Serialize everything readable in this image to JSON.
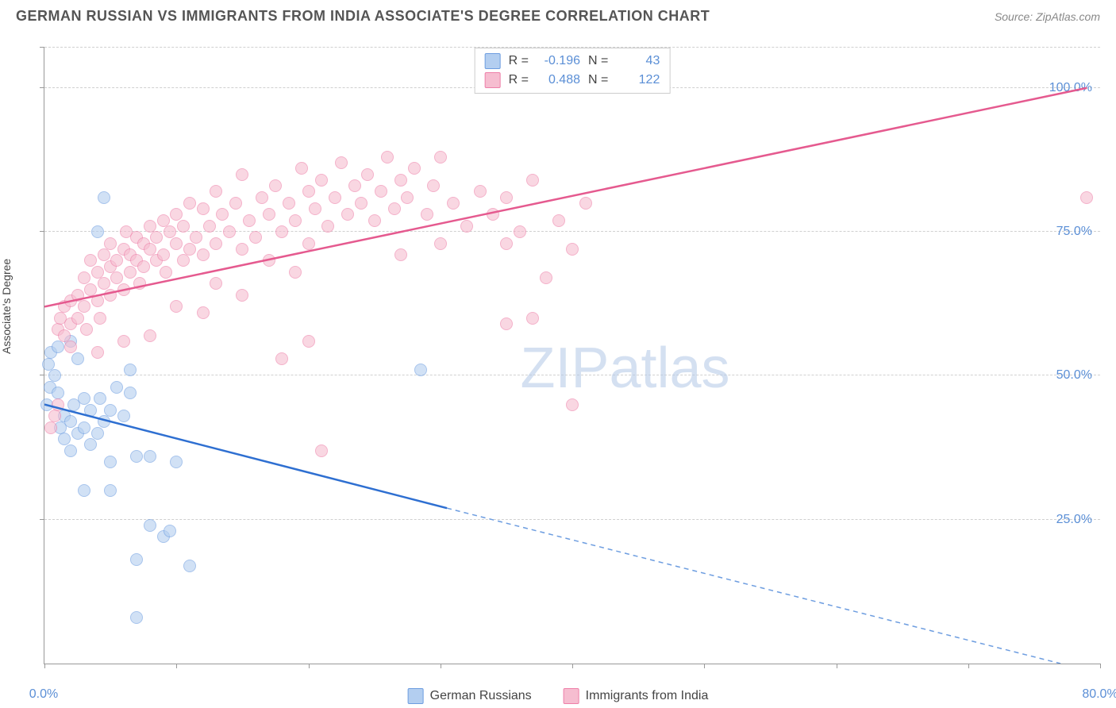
{
  "title": "GERMAN RUSSIAN VS IMMIGRANTS FROM INDIA ASSOCIATE'S DEGREE CORRELATION CHART",
  "source": "Source: ZipAtlas.com",
  "watermark": "ZIPatlas",
  "ylabel": "Associate's Degree",
  "chart": {
    "type": "scatter",
    "xlim": [
      0,
      80
    ],
    "ylim": [
      0,
      107
    ],
    "x_ticks": [
      0,
      10,
      20,
      30,
      40,
      50,
      60,
      70,
      80
    ],
    "x_tick_labels": {
      "0": "0.0%",
      "80": "80.0%"
    },
    "y_gridlines": [
      25,
      50,
      75,
      100,
      107
    ],
    "y_tick_labels": {
      "25": "25.0%",
      "50": "50.0%",
      "75": "75.0%",
      "100": "100.0%"
    },
    "background_color": "#ffffff",
    "grid_color": "#d0d0d0",
    "axis_color": "#999999",
    "tick_label_color": "#5b8fd6",
    "point_radius": 8,
    "series": [
      {
        "name": "German Russians",
        "color_fill": "#b3cef0",
        "color_stroke": "#6d9de0",
        "fill_opacity": 0.6,
        "R": "-0.196",
        "N": "43",
        "trend": {
          "x1": 0,
          "y1": 45,
          "x2": 30.5,
          "y2": 27,
          "color": "#2e6fd1",
          "width": 2.5
        },
        "trend_ext": {
          "x1": 30.5,
          "y1": 27,
          "x2": 77,
          "y2": 0,
          "color": "#6d9de0",
          "width": 1.5,
          "dash": "6,5"
        },
        "points": [
          [
            0.2,
            45
          ],
          [
            0.3,
            52
          ],
          [
            0.4,
            48
          ],
          [
            0.5,
            54
          ],
          [
            0.8,
            50
          ],
          [
            1,
            55
          ],
          [
            1,
            47
          ],
          [
            1.2,
            41
          ],
          [
            1.5,
            43
          ],
          [
            1.5,
            39
          ],
          [
            2,
            42
          ],
          [
            2,
            37
          ],
          [
            2.2,
            45
          ],
          [
            2.5,
            40
          ],
          [
            2.5,
            53
          ],
          [
            3,
            46
          ],
          [
            3,
            41
          ],
          [
            3.5,
            44
          ],
          [
            3.5,
            38
          ],
          [
            4,
            40
          ],
          [
            4.2,
            46
          ],
          [
            4.5,
            42
          ],
          [
            5,
            44
          ],
          [
            5,
            35
          ],
          [
            5.5,
            48
          ],
          [
            6,
            43
          ],
          [
            6.5,
            47
          ],
          [
            4,
            75
          ],
          [
            4.5,
            81
          ],
          [
            5,
            30
          ],
          [
            3,
            30
          ],
          [
            7,
            36
          ],
          [
            8,
            36
          ],
          [
            9,
            22
          ],
          [
            9.5,
            23
          ],
          [
            10,
            35
          ],
          [
            7,
            18
          ],
          [
            11,
            17
          ],
          [
            8,
            24
          ],
          [
            7,
            8
          ],
          [
            6.5,
            51
          ],
          [
            2,
            56
          ],
          [
            28.5,
            51
          ]
        ]
      },
      {
        "name": "Immigrants from India",
        "color_fill": "#f6bdd0",
        "color_stroke": "#ee7fa8",
        "fill_opacity": 0.6,
        "R": "0.488",
        "N": "122",
        "trend": {
          "x1": 0,
          "y1": 62,
          "x2": 79,
          "y2": 100,
          "color": "#e55a8f",
          "width": 2.5
        },
        "points": [
          [
            0.5,
            41
          ],
          [
            0.8,
            43
          ],
          [
            1,
            58
          ],
          [
            1,
            45
          ],
          [
            1.2,
            60
          ],
          [
            1.5,
            57
          ],
          [
            1.5,
            62
          ],
          [
            2,
            59
          ],
          [
            2,
            63
          ],
          [
            2,
            55
          ],
          [
            2.5,
            64
          ],
          [
            2.5,
            60
          ],
          [
            3,
            62
          ],
          [
            3,
            67
          ],
          [
            3.2,
            58
          ],
          [
            3.5,
            65
          ],
          [
            3.5,
            70
          ],
          [
            4,
            63
          ],
          [
            4,
            68
          ],
          [
            4.2,
            60
          ],
          [
            4.5,
            71
          ],
          [
            4.5,
            66
          ],
          [
            5,
            69
          ],
          [
            5,
            64
          ],
          [
            5,
            73
          ],
          [
            5.5,
            70
          ],
          [
            5.5,
            67
          ],
          [
            6,
            72
          ],
          [
            6,
            65
          ],
          [
            6.2,
            75
          ],
          [
            6.5,
            68
          ],
          [
            6.5,
            71
          ],
          [
            7,
            70
          ],
          [
            7,
            74
          ],
          [
            7.2,
            66
          ],
          [
            7.5,
            73
          ],
          [
            7.5,
            69
          ],
          [
            8,
            72
          ],
          [
            8,
            76
          ],
          [
            8.5,
            70
          ],
          [
            8.5,
            74
          ],
          [
            9,
            71
          ],
          [
            9,
            77
          ],
          [
            9.2,
            68
          ],
          [
            9.5,
            75
          ],
          [
            10,
            73
          ],
          [
            10,
            78
          ],
          [
            10.5,
            70
          ],
          [
            10.5,
            76
          ],
          [
            11,
            72
          ],
          [
            11,
            80
          ],
          [
            11.5,
            74
          ],
          [
            12,
            71
          ],
          [
            12,
            79
          ],
          [
            12.5,
            76
          ],
          [
            13,
            73
          ],
          [
            13,
            82
          ],
          [
            13.5,
            78
          ],
          [
            14,
            75
          ],
          [
            14.5,
            80
          ],
          [
            15,
            72
          ],
          [
            15,
            85
          ],
          [
            15.5,
            77
          ],
          [
            16,
            74
          ],
          [
            16.5,
            81
          ],
          [
            17,
            78
          ],
          [
            17.5,
            83
          ],
          [
            18,
            75
          ],
          [
            18.5,
            80
          ],
          [
            19,
            77
          ],
          [
            19.5,
            86
          ],
          [
            20,
            73
          ],
          [
            20,
            82
          ],
          [
            20.5,
            79
          ],
          [
            21,
            84
          ],
          [
            21.5,
            76
          ],
          [
            22,
            81
          ],
          [
            22.5,
            87
          ],
          [
            23,
            78
          ],
          [
            23.5,
            83
          ],
          [
            24,
            80
          ],
          [
            24.5,
            85
          ],
          [
            25,
            77
          ],
          [
            25.5,
            82
          ],
          [
            26,
            88
          ],
          [
            26.5,
            79
          ],
          [
            27,
            84
          ],
          [
            27.5,
            81
          ],
          [
            28,
            86
          ],
          [
            29,
            78
          ],
          [
            29.5,
            83
          ],
          [
            30,
            88
          ],
          [
            31,
            80
          ],
          [
            32,
            76
          ],
          [
            30,
            73
          ],
          [
            33,
            82
          ],
          [
            34,
            78
          ],
          [
            35,
            73
          ],
          [
            35,
            81
          ],
          [
            36,
            75
          ],
          [
            37,
            84
          ],
          [
            38,
            67
          ],
          [
            39,
            77
          ],
          [
            40,
            72
          ],
          [
            41,
            80
          ],
          [
            37,
            60
          ],
          [
            20,
            56
          ],
          [
            18,
            53
          ],
          [
            21,
            37
          ],
          [
            4,
            54
          ],
          [
            6,
            56
          ],
          [
            8,
            57
          ],
          [
            10,
            62
          ],
          [
            12,
            61
          ],
          [
            13,
            66
          ],
          [
            15,
            64
          ],
          [
            17,
            70
          ],
          [
            19,
            68
          ],
          [
            27,
            71
          ],
          [
            79,
            81
          ],
          [
            40,
            45
          ],
          [
            35,
            59
          ]
        ]
      }
    ]
  },
  "legend_bottom": [
    {
      "label": "German Russians",
      "fill": "#b3cef0",
      "stroke": "#6d9de0"
    },
    {
      "label": "Immigrants from India",
      "fill": "#f6bdd0",
      "stroke": "#ee7fa8"
    }
  ]
}
